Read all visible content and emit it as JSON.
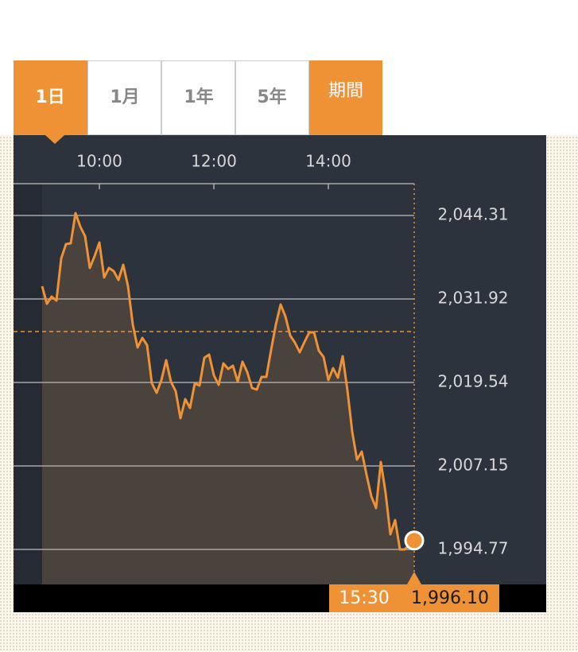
{
  "tabs": [
    "1日",
    "1月",
    "1年",
    "5年",
    "期間"
  ],
  "chart_data": {
    "type": "line",
    "x": [
      540,
      545,
      550,
      555,
      560,
      565,
      570,
      575,
      580,
      585,
      590,
      595,
      600,
      605,
      610,
      615,
      620,
      625,
      630,
      635,
      640,
      645,
      650,
      655,
      660,
      665,
      670,
      675,
      680,
      685,
      690,
      695,
      700,
      705,
      710,
      715,
      720,
      725,
      730,
      735,
      740,
      745,
      750,
      755,
      760,
      765,
      770,
      775,
      780,
      785,
      790,
      795,
      800,
      805,
      810,
      815,
      820,
      825,
      830,
      835,
      840,
      845,
      850,
      855,
      860,
      865,
      870,
      875,
      880,
      885,
      890,
      895,
      900,
      905,
      910,
      915,
      920,
      930
    ],
    "series": [
      {
        "color": "#ef9236",
        "values": [
          2033.81,
          2031.22,
          2032.28,
          2031.69,
          2037.94,
          2040.06,
          2040.18,
          2044.66,
          2042.66,
          2041.24,
          2036.53,
          2038.29,
          2040.3,
          2035.11,
          2036.53,
          2036.05,
          2034.76,
          2037.0,
          2033.81,
          2028.15,
          2024.73,
          2026.15,
          2025.08,
          2019.42,
          2018.01,
          2019.89,
          2022.84,
          2019.66,
          2018.24,
          2014.23,
          2017.06,
          2015.77,
          2019.42,
          2019.07,
          2023.2,
          2023.67,
          2020.6,
          2019.19,
          2022.37,
          2021.55,
          2022.02,
          2019.66,
          2022.61,
          2021.07,
          2018.71,
          2018.48,
          2020.37,
          2020.37,
          2024.38,
          2028.15,
          2031.1,
          2029.33,
          2026.5,
          2025.44,
          2024.02,
          2025.56,
          2026.97,
          2026.97,
          2024.26,
          2023.31,
          2019.89,
          2021.66,
          2020.25,
          2023.43,
          2018.36,
          2012.23,
          2008.1,
          2009.28,
          2005.86,
          2002.67,
          2000.9,
          2007.74,
          2003.14,
          1997.01,
          1999.13,
          1994.77,
          1994.77,
          1996.1
        ]
      }
    ],
    "xlim": [
      510,
      930
    ],
    "xticks": [
      {
        "value": 600,
        "label": "10:00"
      },
      {
        "value": 720,
        "label": "12:00"
      },
      {
        "value": 840,
        "label": "14:00"
      }
    ],
    "ylim": [
      1989.58,
      2049.03
    ],
    "yticks": [
      {
        "value": 2044.31,
        "label": "2,044.31"
      },
      {
        "value": 2031.92,
        "label": "2,031.92"
      },
      {
        "value": 2019.54,
        "label": "2,019.54"
      },
      {
        "value": 2007.15,
        "label": "2,007.15"
      },
      {
        "value": 1994.77,
        "label": "1,994.77"
      }
    ],
    "reference_value": 2027.09,
    "grid": true,
    "cursor": {
      "label_x": "15:30",
      "label_value": "1,996.10"
    }
  }
}
